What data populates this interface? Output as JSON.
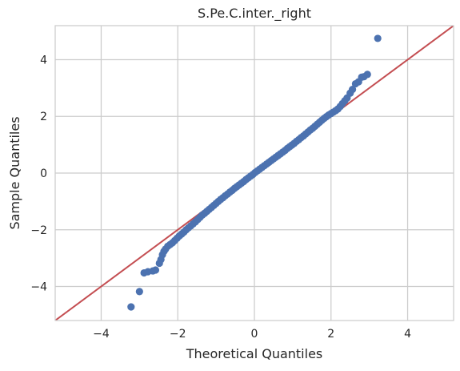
{
  "chart_data": {
    "type": "scatter",
    "title": "S.Pe.C.inter._right",
    "xlabel": "Theoretical Quantiles",
    "ylabel": "Sample Quantiles",
    "xlim": [
      -5.2,
      5.2
    ],
    "ylim": [
      -5.2,
      5.2
    ],
    "xticks": [
      -4,
      -2,
      0,
      2,
      4
    ],
    "yticks": [
      -4,
      -2,
      0,
      2,
      4
    ],
    "xtick_labels": [
      "−4",
      "−2",
      "0",
      "2",
      "4"
    ],
    "ytick_labels": [
      "−4",
      "−2",
      "0",
      "2",
      "4"
    ],
    "grid": true,
    "reference_line": {
      "slope": 1,
      "intercept": 0,
      "color": "#c44e52"
    },
    "point_color": "#4c72b0",
    "series": [
      {
        "points": [
          [
            -3.22,
            -4.72
          ],
          [
            -3.0,
            -4.18
          ],
          [
            -2.88,
            -3.52
          ],
          [
            -2.78,
            -3.48
          ],
          [
            -2.65,
            -3.45
          ],
          [
            -2.58,
            -3.42
          ],
          [
            -2.48,
            -3.18
          ],
          [
            -2.44,
            -3.05
          ],
          [
            -2.4,
            -2.88
          ],
          [
            -2.36,
            -2.76
          ],
          [
            -2.32,
            -2.68
          ],
          [
            -2.26,
            -2.58
          ],
          [
            -2.2,
            -2.52
          ],
          [
            -2.14,
            -2.46
          ],
          [
            -2.08,
            -2.38
          ],
          [
            -2.02,
            -2.3
          ],
          [
            -1.96,
            -2.22
          ],
          [
            -1.9,
            -2.15
          ],
          [
            -1.84,
            -2.08
          ],
          [
            -1.78,
            -2.0
          ],
          [
            -1.72,
            -1.93
          ],
          [
            -1.66,
            -1.86
          ],
          [
            -1.6,
            -1.79
          ],
          [
            -1.54,
            -1.72
          ],
          [
            -1.48,
            -1.64
          ],
          [
            -1.42,
            -1.56
          ],
          [
            -1.36,
            -1.48
          ],
          [
            -1.3,
            -1.42
          ],
          [
            -1.24,
            -1.35
          ],
          [
            -1.18,
            -1.28
          ],
          [
            -1.12,
            -1.21
          ],
          [
            -1.06,
            -1.14
          ],
          [
            -1.0,
            -1.07
          ],
          [
            -0.94,
            -1.0
          ],
          [
            -0.88,
            -0.93
          ],
          [
            -0.82,
            -0.87
          ],
          [
            -0.76,
            -0.8
          ],
          [
            -0.7,
            -0.74
          ],
          [
            -0.64,
            -0.67
          ],
          [
            -0.58,
            -0.61
          ],
          [
            -0.52,
            -0.54
          ],
          [
            -0.46,
            -0.48
          ],
          [
            -0.4,
            -0.42
          ],
          [
            -0.34,
            -0.36
          ],
          [
            -0.28,
            -0.3
          ],
          [
            -0.22,
            -0.23
          ],
          [
            -0.16,
            -0.17
          ],
          [
            -0.1,
            -0.11
          ],
          [
            -0.04,
            -0.05
          ],
          [
            0.02,
            0.02
          ],
          [
            0.08,
            0.08
          ],
          [
            0.14,
            0.14
          ],
          [
            0.2,
            0.2
          ],
          [
            0.26,
            0.26
          ],
          [
            0.32,
            0.32
          ],
          [
            0.38,
            0.38
          ],
          [
            0.44,
            0.44
          ],
          [
            0.5,
            0.5
          ],
          [
            0.56,
            0.56
          ],
          [
            0.62,
            0.62
          ],
          [
            0.68,
            0.68
          ],
          [
            0.74,
            0.74
          ],
          [
            0.8,
            0.8
          ],
          [
            0.86,
            0.87
          ],
          [
            0.92,
            0.93
          ],
          [
            0.98,
            0.99
          ],
          [
            1.04,
            1.05
          ],
          [
            1.1,
            1.12
          ],
          [
            1.16,
            1.18
          ],
          [
            1.22,
            1.25
          ],
          [
            1.28,
            1.31
          ],
          [
            1.34,
            1.38
          ],
          [
            1.4,
            1.45
          ],
          [
            1.46,
            1.52
          ],
          [
            1.52,
            1.58
          ],
          [
            1.58,
            1.65
          ],
          [
            1.64,
            1.72
          ],
          [
            1.7,
            1.79
          ],
          [
            1.76,
            1.86
          ],
          [
            1.82,
            1.93
          ],
          [
            1.88,
            1.99
          ],
          [
            1.94,
            2.05
          ],
          [
            2.0,
            2.1
          ],
          [
            2.06,
            2.15
          ],
          [
            2.12,
            2.2
          ],
          [
            2.18,
            2.26
          ],
          [
            2.24,
            2.35
          ],
          [
            2.3,
            2.45
          ],
          [
            2.36,
            2.55
          ],
          [
            2.42,
            2.65
          ],
          [
            2.5,
            2.82
          ],
          [
            2.56,
            2.95
          ],
          [
            2.64,
            3.15
          ],
          [
            2.72,
            3.22
          ],
          [
            2.8,
            3.38
          ],
          [
            2.86,
            3.4
          ],
          [
            2.95,
            3.48
          ],
          [
            3.22,
            4.75
          ]
        ]
      }
    ]
  }
}
